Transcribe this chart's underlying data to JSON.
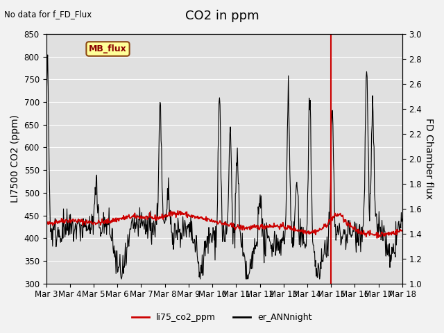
{
  "title": "CO2 in ppm",
  "top_left_text": "No data for f_FD_Flux",
  "ylabel_left": "LI7500 CO2 (ppm)",
  "ylabel_right": "FD Chamber flux",
  "ylim_left": [
    300,
    850
  ],
  "ylim_right": [
    1.0,
    3.0
  ],
  "yticks_left": [
    300,
    350,
    400,
    450,
    500,
    550,
    600,
    650,
    700,
    750,
    800,
    850
  ],
  "yticks_right": [
    1.0,
    1.2,
    1.4,
    1.6,
    1.8,
    2.0,
    2.2,
    2.4,
    2.6,
    2.8,
    3.0
  ],
  "xticklabels": [
    "Mar 3",
    "Mar 4",
    "Mar 5",
    "Mar 6",
    "Mar 7",
    "Mar 8",
    "Mar 9",
    "Mar 10",
    "Mar 11",
    "Mar 12",
    "Mar 13",
    "Mar 14",
    "Mar 15",
    "Mar 16",
    "Mar 17",
    "Mar 18"
  ],
  "mb_flux_label": "MB_flux",
  "legend_entries": [
    "li75_co2_ppm",
    "er_ANNnight"
  ],
  "line_red_color": "#cc0000",
  "line_black_color": "#000000",
  "bg_color": "#e0e0e0",
  "title_fontsize": 13,
  "axis_fontsize": 10,
  "tick_fontsize": 8.5,
  "vline_x": 12.0
}
